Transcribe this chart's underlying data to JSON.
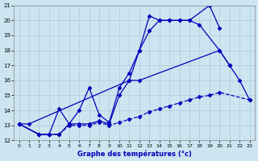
{
  "xlabel": "Graphe des températures (°c)",
  "xlim": [
    -0.5,
    23.5
  ],
  "ylim": [
    12,
    21
  ],
  "yticks": [
    12,
    13,
    14,
    15,
    16,
    17,
    18,
    19,
    20,
    21
  ],
  "xticks": [
    0,
    1,
    2,
    3,
    4,
    5,
    6,
    7,
    8,
    9,
    10,
    11,
    12,
    13,
    14,
    15,
    16,
    17,
    18,
    19,
    20,
    21,
    22,
    23
  ],
  "bg_color": "#cce5f0",
  "grid_color": "#aaccdd",
  "line_color": "#0000bb",
  "series": [
    {
      "x": [
        0,
        1,
        2,
        3,
        4,
        5,
        6,
        7,
        8,
        9,
        10,
        11,
        12,
        13,
        14,
        15,
        16,
        17,
        18,
        19,
        20,
        21,
        22,
        23
      ],
      "y": [
        13.1,
        13.1,
        null,
        null,
        null,
        null,
        null,
        null,
        null,
        null,
        null,
        16.0,
        18.0,
        20.3,
        20.0,
        20.0,
        20.0,
        20.0,
        null,
        21.0,
        19.5,
        null,
        null,
        null
      ],
      "linestyle": "-",
      "marker": "D",
      "markersize": 2.5
    },
    {
      "x": [
        0,
        2,
        3,
        4,
        5,
        6,
        7,
        8,
        9,
        10,
        11,
        12,
        13,
        14,
        15,
        16,
        17,
        18,
        19,
        20,
        21
      ],
      "y": [
        13.1,
        12.4,
        12.4,
        14.1,
        13.1,
        14.0,
        15.5,
        13.7,
        13.2,
        15.5,
        16.5,
        18.0,
        19.3,
        20.0,
        20.0,
        20.0,
        20.0,
        19.7,
        null,
        18.0,
        17.0
      ],
      "linestyle": "-",
      "marker": "D",
      "markersize": 2.5
    },
    {
      "x": [
        0,
        2,
        3,
        4,
        5,
        6,
        7,
        8,
        9,
        10,
        11,
        12,
        13,
        14,
        15,
        16,
        17,
        18,
        19,
        20,
        21,
        22,
        23
      ],
      "y": [
        13.1,
        12.4,
        12.4,
        12.4,
        13.1,
        13.1,
        13.1,
        13.3,
        13.1,
        15.0,
        16.0,
        16.0,
        null,
        null,
        null,
        null,
        null,
        null,
        null,
        18.0,
        17.0,
        16.0,
        14.7
      ],
      "linestyle": "-",
      "marker": "D",
      "markersize": 2.5
    },
    {
      "x": [
        0,
        2,
        3,
        4,
        5,
        6,
        7,
        8,
        9,
        10,
        11,
        12,
        13,
        14,
        15,
        16,
        17,
        18,
        19,
        20,
        22,
        23
      ],
      "y": [
        13.1,
        12.4,
        12.4,
        12.4,
        13.0,
        13.0,
        13.0,
        13.2,
        13.0,
        13.2,
        13.4,
        13.6,
        13.9,
        14.1,
        14.3,
        14.5,
        14.7,
        14.9,
        15.0,
        15.2,
        null,
        14.7
      ],
      "linestyle": "--",
      "marker": "D",
      "markersize": 2.5
    }
  ]
}
